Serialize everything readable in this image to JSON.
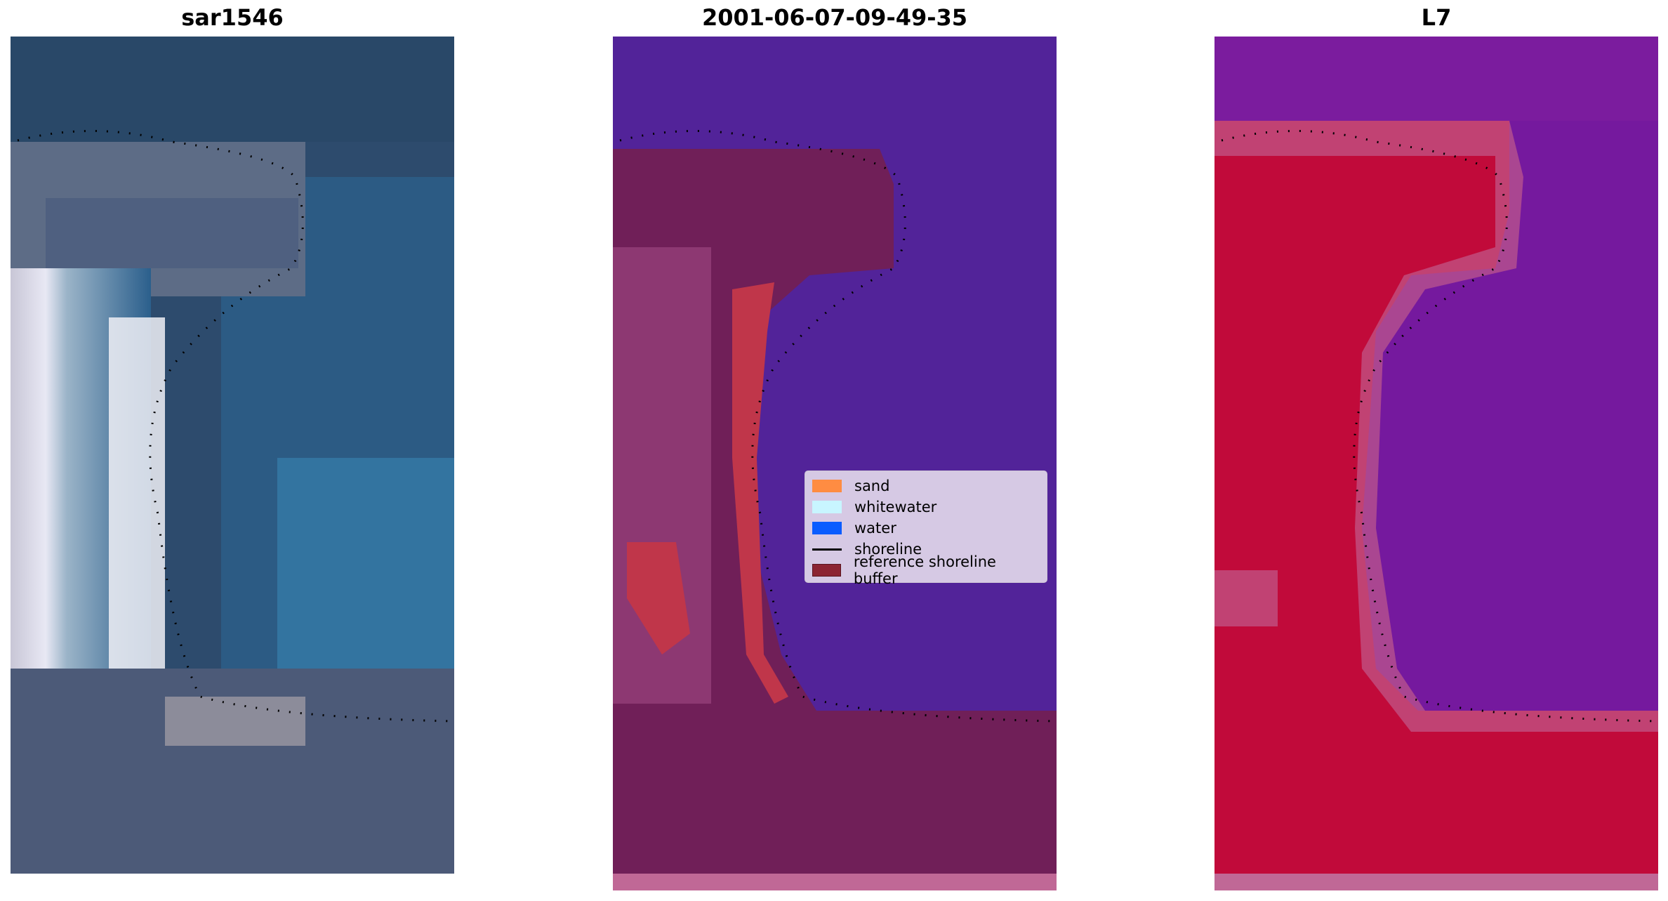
{
  "panels": [
    {
      "title": "sar1546"
    },
    {
      "title": "2001-06-07-09-49-35"
    },
    {
      "title": "L7"
    }
  ],
  "legend": {
    "items": [
      {
        "label": "sand",
        "color": "#ff8c42"
      },
      {
        "label": "whitewater",
        "color": "#c8f5ff"
      },
      {
        "label": "water",
        "color": "#0a5cff"
      },
      {
        "label": "shoreline",
        "color": "#000000"
      },
      {
        "label": "reference shoreline buffer",
        "color": "#8c2433"
      }
    ]
  },
  "colors": {
    "rgb_water": "#2e4f73",
    "rgb_sand": "#d8d8e6",
    "class_water": "#522399",
    "class_land": "#701f58",
    "class_buffer": "#c0364a",
    "mndwi_water": "#75199e",
    "mndwi_land": "#c10a3a"
  }
}
